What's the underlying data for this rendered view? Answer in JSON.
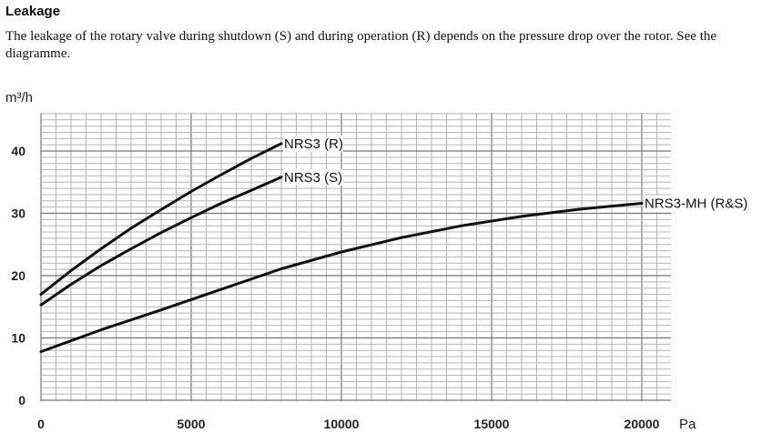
{
  "section": {
    "heading": "Leakage",
    "description": "The leakage of the rotary valve during shutdown (S) and during operation (R) depends on the pressure drop over the rotor. See the diagramme."
  },
  "chart_data": {
    "type": "line",
    "ylabel": "m³/h",
    "xlabel": "Pa",
    "xlim": [
      0,
      21000
    ],
    "ylim": [
      0,
      46
    ],
    "x_ticks": [
      0,
      5000,
      10000,
      15000,
      20000
    ],
    "x_tick_labels": [
      "0",
      "5000",
      "10000",
      "15000",
      "20000"
    ],
    "y_ticks": [
      0,
      10,
      20,
      30,
      40
    ],
    "y_tick_labels": [
      "0",
      "10",
      "20",
      "30",
      "40"
    ],
    "grid": true,
    "series": [
      {
        "name": "NRS3 (R)",
        "color": "#111111",
        "x": [
          0,
          1000,
          2000,
          3000,
          4000,
          5000,
          6000,
          7000,
          8000
        ],
        "y": [
          17,
          20.8,
          24.3,
          27.6,
          30.6,
          33.5,
          36.2,
          38.8,
          41.2
        ]
      },
      {
        "name": "NRS3 (S)",
        "color": "#111111",
        "x": [
          0,
          1000,
          2000,
          3000,
          4000,
          5000,
          6000,
          7000,
          8000
        ],
        "y": [
          15.3,
          18.6,
          21.6,
          24.3,
          26.9,
          29.3,
          31.6,
          33.7,
          35.8
        ]
      },
      {
        "name": "NRS3-MH (R&S)",
        "color": "#111111",
        "x": [
          0,
          2000,
          4000,
          6000,
          8000,
          10000,
          12000,
          14000,
          16000,
          18000,
          20000
        ],
        "y": [
          7.8,
          11.3,
          14.5,
          17.8,
          21.1,
          23.8,
          26.1,
          28.0,
          29.5,
          30.7,
          31.6
        ]
      }
    ]
  }
}
